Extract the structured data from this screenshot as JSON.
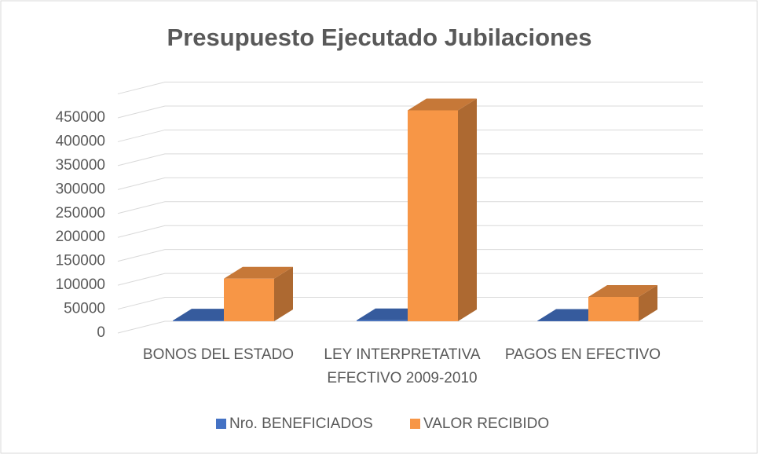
{
  "chart_data": {
    "type": "bar3d",
    "title": "Presupuesto Ejecutado Jubilaciones",
    "categories": [
      "BONOS DEL ESTADO",
      "LEY INTERPRETATIVA EFECTIVO 2009-2010",
      "PAGOS EN EFECTIVO"
    ],
    "series": [
      {
        "name": "Nro. BENEFICIADOS",
        "color": "#4472c4",
        "values": [
          1500,
          2000,
          800
        ]
      },
      {
        "name": "VALOR RECIBIDO",
        "color": "#f79646",
        "values": [
          89000,
          441000,
          51000
        ]
      }
    ],
    "ylim": [
      0,
      500000
    ],
    "yticks": [
      0,
      50000,
      100000,
      150000,
      200000,
      250000,
      300000,
      350000,
      400000,
      450000
    ],
    "grid": true,
    "legend": "bottom"
  }
}
